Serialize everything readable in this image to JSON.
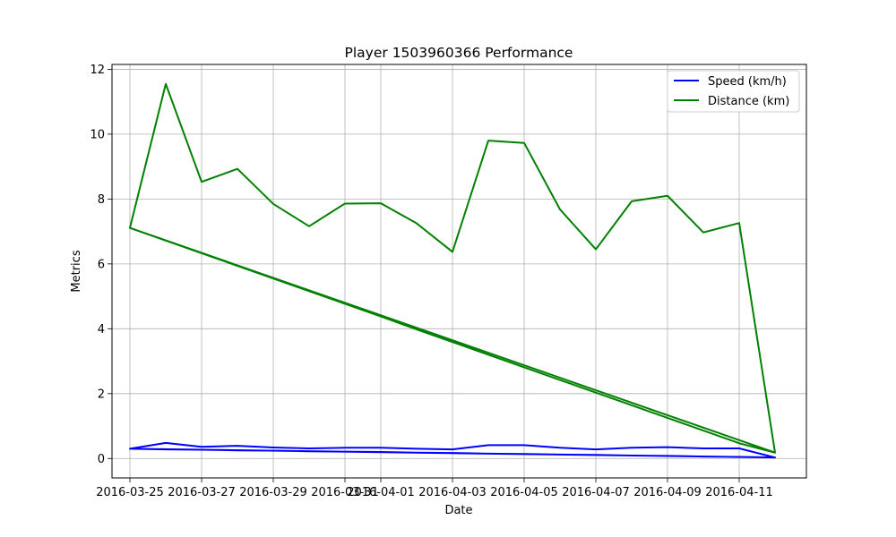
{
  "chart_data": {
    "type": "line",
    "title": "Player 1503960366 Performance",
    "xlabel": "Date",
    "ylabel": "Metrics",
    "x": [
      "2016-03-25",
      "2016-03-26",
      "2016-03-27",
      "2016-03-28",
      "2016-03-29",
      "2016-03-30",
      "2016-03-31",
      "2016-04-01",
      "2016-04-02",
      "2016-04-03",
      "2016-04-04",
      "2016-04-05",
      "2016-04-06",
      "2016-04-07",
      "2016-04-08",
      "2016-04-09",
      "2016-04-10",
      "2016-04-11",
      "2016-04-12",
      "2016-03-25",
      "2016-03-26",
      "2016-03-27",
      "2016-03-28",
      "2016-03-29",
      "2016-03-30",
      "2016-03-31",
      "2016-04-01",
      "2016-04-02",
      "2016-04-03",
      "2016-04-04",
      "2016-04-05",
      "2016-04-06",
      "2016-04-07",
      "2016-04-08",
      "2016-04-09",
      "2016-04-10",
      "2016-04-11",
      "2016-04-12"
    ],
    "x_ticks": [
      "2016-03-25",
      "2016-03-27",
      "2016-03-29",
      "2016-03-31",
      "2016-04-01",
      "2016-04-03",
      "2016-04-05",
      "2016-04-07",
      "2016-04-09",
      "2016-04-11"
    ],
    "y_ticks": [
      0,
      2,
      4,
      6,
      8,
      10,
      12
    ],
    "xlim": [
      "2016-03-24T12:00",
      "2016-04-12T21:00"
    ],
    "ylim": [
      -0.6,
      12.15
    ],
    "grid": true,
    "legend_position": "top-right",
    "series": [
      {
        "name": "Speed (km/h)",
        "color": "#0000ff",
        "values": [
          0.3,
          0.48,
          0.36,
          0.39,
          0.34,
          0.31,
          0.33,
          0.33,
          0.3,
          0.28,
          0.41,
          0.41,
          0.33,
          0.28,
          0.33,
          0.35,
          0.31,
          0.31,
          0.03,
          0.3,
          0.28,
          0.27,
          0.25,
          0.24,
          0.22,
          0.21,
          0.2,
          0.18,
          0.17,
          0.15,
          0.14,
          0.12,
          0.11,
          0.09,
          0.08,
          0.06,
          0.05,
          0.03
        ]
      },
      {
        "name": "Distance (km)",
        "color": "#008000",
        "values": [
          7.11,
          11.55,
          8.53,
          8.93,
          7.85,
          7.16,
          7.86,
          7.87,
          7.25,
          6.37,
          9.8,
          9.73,
          7.68,
          6.45,
          7.93,
          8.1,
          6.97,
          7.26,
          0.18,
          7.11,
          6.72,
          6.33,
          5.94,
          5.55,
          5.16,
          4.77,
          4.38,
          3.98,
          3.59,
          3.2,
          2.81,
          2.42,
          2.03,
          1.64,
          1.25,
          0.86,
          0.47,
          0.18
        ]
      }
    ]
  }
}
